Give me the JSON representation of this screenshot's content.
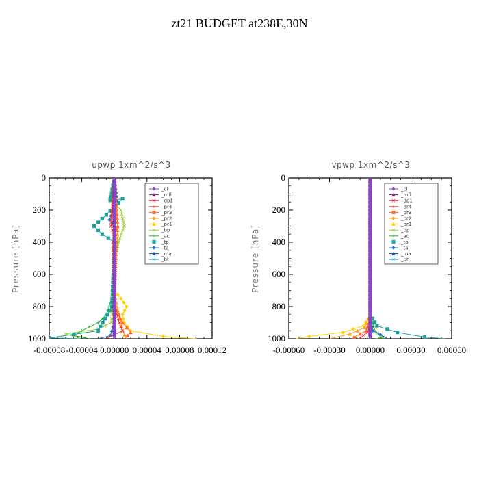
{
  "figure": {
    "title": "zt21  BUDGET at238E,30N"
  },
  "legend_names": [
    "_cl",
    "_mfl",
    "_dp1",
    "_pr4",
    "_pr3",
    "_pr2",
    "_pr1",
    "_bp",
    "_ac",
    "_tp",
    "_ta",
    "_ma",
    "_bt"
  ],
  "colors": {
    "_cl": "#8844cc",
    "_mfl": "#7a1f6e",
    "_dp1": "#cc1f4a",
    "_pr4": "#ff3030",
    "_pr3": "#ff6a2a",
    "_pr2": "#ffa030",
    "_pr1": "#ffd200",
    "_bp": "#9acd32",
    "_ac": "#22bb33",
    "_tp": "#20a0a0",
    "_ta": "#2070d0",
    "_ma": "#1840a0",
    "_bt": "#30c0e0"
  },
  "chart_data": [
    {
      "type": "line",
      "title": "upwp   1xm^2/s^3",
      "ylabel": "Pressure [hPa]",
      "xlim": [
        -8e-05,
        0.00012
      ],
      "ylim": [
        1000,
        0
      ],
      "xticks": [
        "-0.00008",
        "-0.00004",
        "0.00000",
        "0.00004",
        "0.00008",
        "0.00012"
      ],
      "yticks": [
        "0",
        "200",
        "400",
        "600",
        "800",
        "1000"
      ],
      "series": [
        {
          "name": "_pr1",
          "values": [
            [
              0,
              0
            ],
            [
              1e-06,
              100
            ],
            [
              0,
              300
            ],
            [
              0,
              700
            ],
            [
              8e-06,
              750
            ],
            [
              1.5e-05,
              800
            ],
            [
              1e-05,
              850
            ],
            [
              1.2e-05,
              900
            ],
            [
              2e-05,
              950
            ],
            [
              6e-05,
              985
            ],
            [
              0.0001,
              1000
            ]
          ]
        },
        {
          "name": "_pr2",
          "values": [
            [
              0,
              0
            ],
            [
              2e-06,
              140
            ],
            [
              4e-06,
              300
            ],
            [
              0,
              700
            ],
            [
              3e-06,
              800
            ],
            [
              8e-06,
              900
            ],
            [
              1e-05,
              950
            ],
            [
              1.5e-05,
              1000
            ]
          ]
        },
        {
          "name": "_bp",
          "values": [
            [
              0,
              0
            ],
            [
              -6e-06,
              130
            ],
            [
              8e-06,
              200
            ],
            [
              1.2e-05,
              300
            ],
            [
              5e-06,
              400
            ],
            [
              0,
              500
            ],
            [
              -2e-06,
              800
            ],
            [
              -4e-06,
              900
            ],
            [
              -2e-05,
              940
            ],
            [
              -6e-05,
              970
            ],
            [
              -4e-05,
              1000
            ]
          ]
        },
        {
          "name": "_ac",
          "values": [
            [
              0,
              0
            ],
            [
              0,
              700
            ],
            [
              -1e-05,
              850
            ],
            [
              -2e-05,
              900
            ],
            [
              -4e-05,
              950
            ],
            [
              -5e-05,
              980
            ],
            [
              -3e-05,
              1000
            ]
          ]
        },
        {
          "name": "_tp",
          "values": [
            [
              0,
              0
            ],
            [
              -5e-06,
              140
            ],
            [
              1e-05,
              130
            ],
            [
              -1e-05,
              230
            ],
            [
              -2.5e-05,
              300
            ],
            [
              -1.5e-05,
              350
            ],
            [
              0,
              400
            ],
            [
              -3e-06,
              800
            ],
            [
              -2e-05,
              950
            ],
            [
              -8e-05,
              995
            ],
            [
              -4e-05,
              1000
            ]
          ]
        },
        {
          "name": "_ta",
          "values": [
            [
              0,
              0
            ],
            [
              3e-06,
              140
            ],
            [
              -6e-06,
              260
            ],
            [
              0,
              300
            ],
            [
              0,
              900
            ],
            [
              -5e-06,
              980
            ],
            [
              -2e-05,
              1000
            ]
          ]
        },
        {
          "name": "_pr3",
          "values": [
            [
              0,
              0
            ],
            [
              2e-06,
              150
            ],
            [
              4e-06,
              300
            ],
            [
              -2e-06,
              400
            ],
            [
              0,
              800
            ],
            [
              1e-05,
              900
            ],
            [
              2e-05,
              960
            ],
            [
              1.2e-05,
              1000
            ]
          ]
        },
        {
          "name": "_pr4",
          "values": [
            [
              0,
              0
            ],
            [
              -3e-06,
              200
            ],
            [
              -4e-06,
              300
            ],
            [
              2e-06,
              400
            ],
            [
              0,
              800
            ],
            [
              6e-06,
              900
            ],
            [
              1e-05,
              950
            ],
            [
              -1e-05,
              1000
            ]
          ]
        },
        {
          "name": "_dp1",
          "values": [
            [
              0,
              0
            ],
            [
              0,
              1000
            ]
          ]
        },
        {
          "name": "_mfl",
          "values": [
            [
              0,
              0
            ],
            [
              0,
              1000
            ]
          ]
        },
        {
          "name": "_cl",
          "values": [
            [
              0,
              0
            ],
            [
              0,
              1000
            ]
          ]
        }
      ]
    },
    {
      "type": "line",
      "title": "vpwp   1xm^2/s^3",
      "ylabel": "Pressure [hPa]",
      "xlim": [
        -0.0006,
        0.0006
      ],
      "ylim": [
        1000,
        0
      ],
      "xticks": [
        "-0.00060",
        "-0.00030",
        "0.00000",
        "0.00030",
        "0.00060"
      ],
      "yticks": [
        "0",
        "200",
        "400",
        "600",
        "800",
        "1000"
      ],
      "series": [
        {
          "name": "_pr1",
          "values": [
            [
              0,
              0
            ],
            [
              0,
              850
            ],
            [
              -5e-05,
              920
            ],
            [
              -0.0002,
              960
            ],
            [
              -0.00045,
              985
            ],
            [
              -0.00055,
              1000
            ]
          ]
        },
        {
          "name": "_pr2",
          "values": [
            [
              0,
              0
            ],
            [
              0,
              850
            ],
            [
              -4e-05,
              930
            ],
            [
              -0.00015,
              970
            ],
            [
              -0.0003,
              1000
            ]
          ]
        },
        {
          "name": "_bp",
          "values": [
            [
              0,
              0
            ],
            [
              3e-06,
              220
            ],
            [
              0,
              250
            ],
            [
              0,
              850
            ],
            [
              3e-05,
              940
            ],
            [
              8e-05,
              990
            ],
            [
              4e-05,
              1000
            ]
          ]
        },
        {
          "name": "_ac",
          "values": [
            [
              0,
              0
            ],
            [
              0,
              850
            ],
            [
              2e-05,
              900
            ],
            [
              3e-05,
              950
            ],
            [
              0.0001,
              990
            ],
            [
              5e-05,
              1000
            ]
          ]
        },
        {
          "name": "_tp",
          "values": [
            [
              0,
              0
            ],
            [
              0,
              850
            ],
            [
              5e-05,
              920
            ],
            [
              0.0002,
              960
            ],
            [
              0.0004,
              990
            ],
            [
              0.00055,
              1000
            ]
          ]
        },
        {
          "name": "_ta",
          "values": [
            [
              0,
              0
            ],
            [
              0,
              880
            ],
            [
              2e-05,
              950
            ],
            [
              0.00013,
              1000
            ]
          ]
        },
        {
          "name": "_pr3",
          "values": [
            [
              0,
              0
            ],
            [
              0,
              880
            ],
            [
              -3e-05,
              950
            ],
            [
              -0.00012,
              990
            ],
            [
              -8e-05,
              1000
            ]
          ]
        },
        {
          "name": "_pr4",
          "values": [
            [
              0,
              0
            ],
            [
              0,
              900
            ],
            [
              -2e-05,
              960
            ],
            [
              -8e-05,
              1000
            ]
          ]
        },
        {
          "name": "_dp1",
          "values": [
            [
              0,
              0
            ],
            [
              0,
              1000
            ]
          ]
        },
        {
          "name": "_mfl",
          "values": [
            [
              0,
              0
            ],
            [
              0,
              1000
            ]
          ]
        },
        {
          "name": "_cl",
          "values": [
            [
              0,
              0
            ],
            [
              0,
              1000
            ]
          ]
        }
      ]
    }
  ]
}
